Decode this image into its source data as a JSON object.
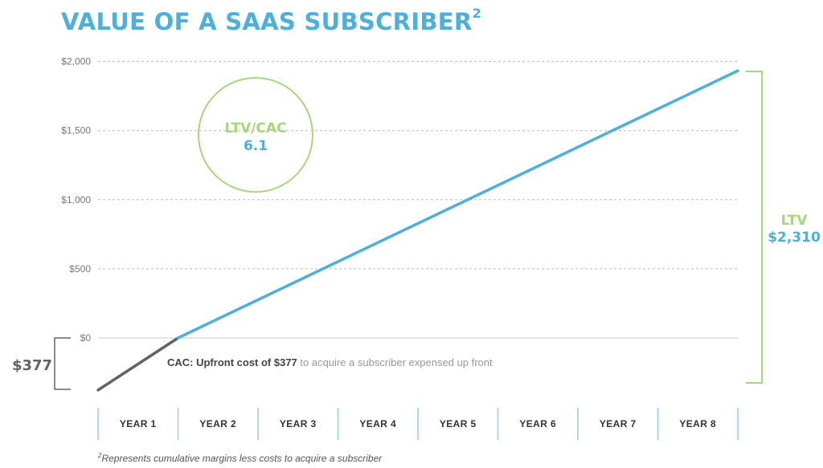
{
  "title": {
    "text": "VALUE OF A SAAS SUBSCRIBER",
    "footnote_mark": "2"
  },
  "footnote": {
    "mark": "2",
    "text": "Represents cumulative margins less costs to acquire a subscriber"
  },
  "colors": {
    "accent_blue": "#4db0dc",
    "accent_green": "#a6d87a",
    "cac_gray": "#5e6269",
    "grid": "#bdbdbd"
  },
  "ratio": {
    "label": "LTV/CAC",
    "value": "6.1"
  },
  "ltv": {
    "label": "LTV",
    "value": "$2,310"
  },
  "cac": {
    "amount_label": "$377",
    "annotation_bold": "CAC: Upfront cost of $377",
    "annotation_rest": " to acquire a subscriber expensed up front"
  },
  "chart_data": {
    "type": "line",
    "title": "VALUE OF A SAAS SUBSCRIBER",
    "categories": [
      "YEAR 1",
      "YEAR 2",
      "YEAR 3",
      "YEAR 4",
      "YEAR 5",
      "YEAR 6",
      "YEAR 7",
      "YEAR 8"
    ],
    "y_ticks": [
      0,
      500,
      1000,
      1500,
      2000
    ],
    "y_tick_labels": [
      "$0",
      "$500",
      "$1,000",
      "$1,500",
      "$2,000"
    ],
    "ylim": [
      -377,
      2000
    ],
    "grid": true,
    "series": [
      {
        "x": [
          0,
          1,
          8
        ],
        "y": [
          -377,
          0,
          1933
        ]
      }
    ]
  }
}
